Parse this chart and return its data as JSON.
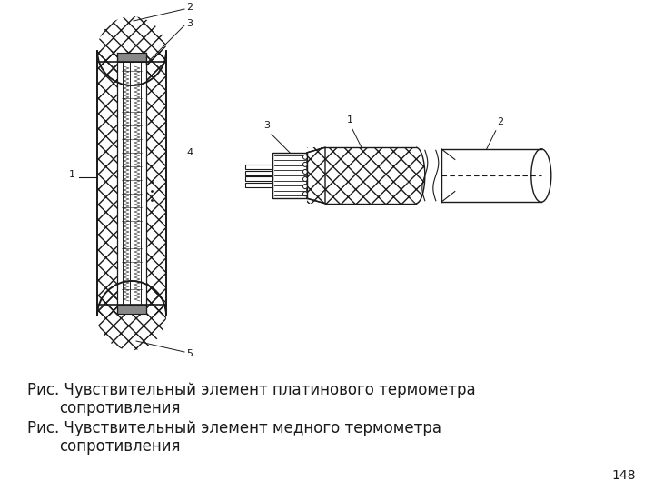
{
  "bg_color": "#ffffff",
  "caption1_line1": "Рис. Чувствительный элемент платинового термометра",
  "caption1_line2": "        сопротивления",
  "caption2_line1": "Рис. Чувствительный элемент медного термометра",
  "caption2_line2": "        сопротивления",
  "page_number": "148",
  "font_size_caption": 12,
  "font_size_page": 10,
  "line_color": "#1a1a1a",
  "fig_width": 7.2,
  "fig_height": 5.4,
  "dpi": 100
}
